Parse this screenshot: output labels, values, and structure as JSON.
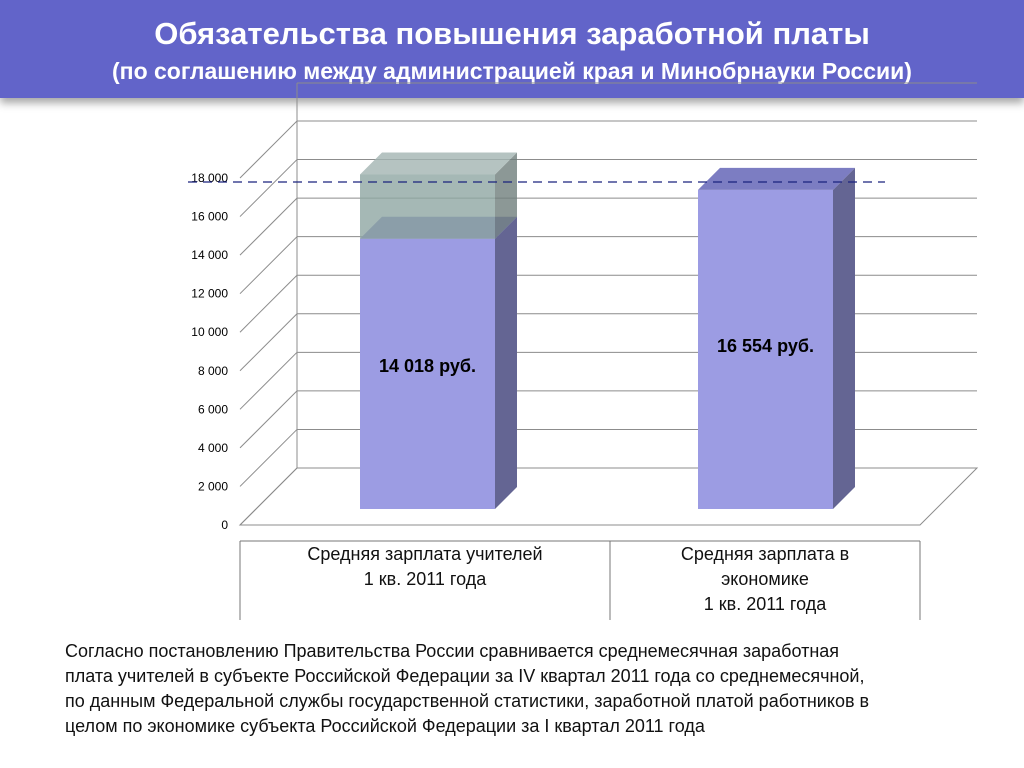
{
  "header": {
    "title": "Обязательства повышения заработной платы",
    "subtitle": "(по соглашению между администрацией края и Минобрнауки России)"
  },
  "chart_data": {
    "type": "bar",
    "categories": [
      "Средняя зарплата учителей\n1 кв. 2011 года",
      "Средняя зарплата в\nэкономике\n1 кв. 2011 года"
    ],
    "values": [
      14018,
      16554
    ],
    "data_labels": [
      "14 018 руб.",
      "16 554 руб."
    ],
    "target": 17350,
    "yticks": [
      "0",
      "2 000",
      "4 000",
      "6 000",
      "8 000",
      "10 000",
      "12 000",
      "14 000",
      "16 000",
      "18 000"
    ],
    "ylim": [
      0,
      18000
    ],
    "grid": true,
    "three_d": true,
    "colors": {
      "bar_front": "#9c9ce3",
      "bar_side": "#646593",
      "bar_top": "#7c7dc2",
      "target_fill": "#8fa6a3",
      "target_line": "#1a237e",
      "grid": "#8c8c8c"
    }
  },
  "note": "Согласно постановлению Правительства России сравнивается среднемесячная заработная\nплата учителей в субъекте Российской Федерации за IV квартал 2011 года со среднемесячной,\nпо данным Федеральной службы государственной статистики, заработной платой работников в\nцелом по экономике субъекта Российской Федерации за I квартал 2011 года"
}
